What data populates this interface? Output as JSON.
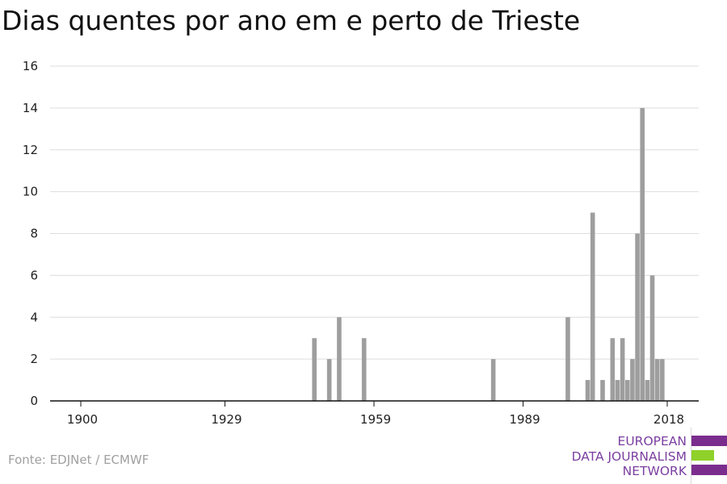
{
  "title": "Dias quentes por ano em e perto de Trieste",
  "source": "Fonte: EDJNet / ECMWF",
  "logo": {
    "lines": [
      "EUROPEAN",
      "DATA JOURNALISM",
      "NETWORK"
    ],
    "text_color": "#7b3fa0",
    "bar_colors": [
      "#7b2d8e",
      "#8fd12a",
      "#7b2d8e"
    ]
  },
  "colors": {
    "bar": "#9e9e9e",
    "grid": "#dddddd",
    "axis": "#111111"
  },
  "chart_data": {
    "type": "bar",
    "title": "Dias quentes por ano em e perto de Trieste",
    "xlabel": "",
    "ylabel": "",
    "xlim": [
      1900,
      2018
    ],
    "ylim": [
      0,
      16
    ],
    "x_ticks": [
      1900,
      1929,
      1959,
      1989,
      2018
    ],
    "y_ticks": [
      0,
      2,
      4,
      6,
      8,
      10,
      12,
      14,
      16
    ],
    "grid": true,
    "x": [
      1947,
      1950,
      1952,
      1957,
      1983,
      1998,
      2002,
      2003,
      2005,
      2007,
      2008,
      2009,
      2010,
      2011,
      2012,
      2013,
      2014,
      2015,
      2016,
      2017
    ],
    "values": [
      3,
      2,
      4,
      3,
      2,
      4,
      1,
      9,
      1,
      3,
      1,
      3,
      1,
      2,
      8,
      14,
      1,
      6,
      2,
      2
    ]
  }
}
